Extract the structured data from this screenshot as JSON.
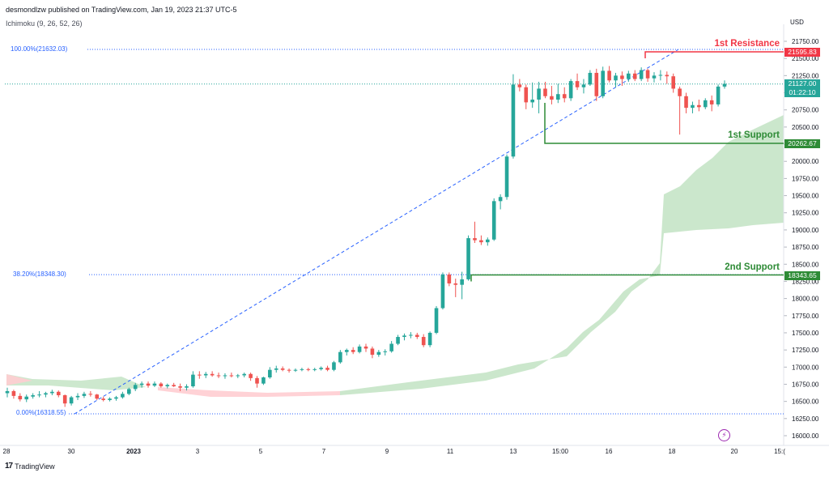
{
  "header": {
    "publisher": "desmondlzw published on TradingView.com, Jan 19, 2023 21:37 UTC-5",
    "indicator": "Ichimoku (9, 26, 52, 26)"
  },
  "footer": {
    "brand": "TradingView",
    "logo": "tv-logo-icon"
  },
  "colors": {
    "up": "#26a69a",
    "down": "#ef5350",
    "resistance": "#f23645",
    "support": "#2e8b36",
    "fib": "#2962ff",
    "cloud_bull": "#c8e6c9",
    "cloud_bear": "#ffcdd2"
  },
  "annotations": {
    "resistance_label": "1st Resistance",
    "support1_label": "1st Support",
    "support2_label": "2nd Support",
    "fib_top_label": "100.00%(21632.03)",
    "fib_mid_label": "38.20%(18348.30)",
    "fib_bottom_label": "0.00%(16318.55)"
  },
  "price_tags": {
    "resistance": "21595.83",
    "current_price": "21127.00",
    "countdown": "01:22:10",
    "support1": "20262.67",
    "support2": "18343.65"
  },
  "chart_data": {
    "type": "candlestick",
    "symbol_currency": "USD",
    "y_axis_label": "USD",
    "ylim": [
      16000,
      21900
    ],
    "y_ticks": [
      16000,
      16250,
      16500,
      16750,
      17000,
      17250,
      17500,
      17750,
      18000,
      18250,
      18500,
      18750,
      19000,
      19250,
      19500,
      19750,
      20000,
      20250,
      20500,
      20750,
      21000,
      21250,
      21500,
      21750
    ],
    "x_ticks": [
      "28",
      "30",
      "2023",
      "3",
      "5",
      "7",
      "9",
      "11",
      "13",
      "15:00",
      "16",
      "18",
      "20",
      "15:("
    ],
    "levels": {
      "resistance": 21595.83,
      "support1": 20262.67,
      "support2": 18343.65,
      "current": 21127.0,
      "fib_100": 21632.03,
      "fib_382": 18348.3,
      "fib_0": 16318.55
    },
    "candles": [
      [
        16620,
        16700,
        16560,
        16650
      ],
      [
        16650,
        16670,
        16540,
        16580
      ],
      [
        16580,
        16620,
        16500,
        16530
      ],
      [
        16530,
        16600,
        16490,
        16570
      ],
      [
        16570,
        16620,
        16540,
        16590
      ],
      [
        16590,
        16650,
        16560,
        16600
      ],
      [
        16600,
        16640,
        16560,
        16620
      ],
      [
        16620,
        16670,
        16590,
        16640
      ],
      [
        16640,
        16660,
        16560,
        16590
      ],
      [
        16590,
        16600,
        16420,
        16470
      ],
      [
        16470,
        16580,
        16440,
        16560
      ],
      [
        16560,
        16620,
        16520,
        16580
      ],
      [
        16580,
        16640,
        16550,
        16610
      ],
      [
        16610,
        16650,
        16570,
        16600
      ],
      [
        16600,
        16610,
        16520,
        16540
      ],
      [
        16540,
        16570,
        16500,
        16520
      ],
      [
        16520,
        16560,
        16500,
        16540
      ],
      [
        16540,
        16580,
        16510,
        16560
      ],
      [
        16560,
        16640,
        16540,
        16610
      ],
      [
        16610,
        16700,
        16590,
        16680
      ],
      [
        16680,
        16770,
        16650,
        16740
      ],
      [
        16740,
        16790,
        16700,
        16760
      ],
      [
        16760,
        16790,
        16700,
        16730
      ],
      [
        16730,
        16790,
        16710,
        16760
      ],
      [
        16760,
        16780,
        16700,
        16720
      ],
      [
        16720,
        16760,
        16690,
        16740
      ],
      [
        16740,
        16770,
        16710,
        16720
      ],
      [
        16720,
        16760,
        16650,
        16700
      ],
      [
        16700,
        16750,
        16660,
        16720
      ],
      [
        16720,
        16940,
        16700,
        16890
      ],
      [
        16890,
        16940,
        16830,
        16880
      ],
      [
        16880,
        16930,
        16840,
        16900
      ],
      [
        16900,
        16940,
        16860,
        16880
      ],
      [
        16880,
        16920,
        16840,
        16870
      ],
      [
        16870,
        16910,
        16830,
        16880
      ],
      [
        16880,
        16920,
        16850,
        16870
      ],
      [
        16870,
        16900,
        16840,
        16880
      ],
      [
        16880,
        16920,
        16850,
        16900
      ],
      [
        16900,
        16920,
        16800,
        16840
      ],
      [
        16840,
        16870,
        16700,
        16760
      ],
      [
        16760,
        16860,
        16740,
        16850
      ],
      [
        16850,
        17000,
        16830,
        16960
      ],
      [
        16960,
        17020,
        16920,
        16980
      ],
      [
        16980,
        17010,
        16940,
        16960
      ],
      [
        16960,
        16980,
        16920,
        16950
      ],
      [
        16950,
        16980,
        16930,
        16960
      ],
      [
        16960,
        16990,
        16940,
        16970
      ],
      [
        16970,
        16990,
        16940,
        16960
      ],
      [
        16960,
        16990,
        16940,
        16970
      ],
      [
        16970,
        17010,
        16950,
        16990
      ],
      [
        16990,
        17020,
        16940,
        16960
      ],
      [
        16960,
        17090,
        16940,
        17070
      ],
      [
        17070,
        17250,
        17050,
        17220
      ],
      [
        17220,
        17270,
        17170,
        17250
      ],
      [
        17250,
        17290,
        17190,
        17220
      ],
      [
        17220,
        17330,
        17200,
        17300
      ],
      [
        17300,
        17340,
        17220,
        17270
      ],
      [
        17270,
        17300,
        17130,
        17180
      ],
      [
        17180,
        17250,
        17150,
        17220
      ],
      [
        17220,
        17260,
        17170,
        17230
      ],
      [
        17230,
        17380,
        17210,
        17340
      ],
      [
        17340,
        17470,
        17320,
        17440
      ],
      [
        17440,
        17490,
        17390,
        17460
      ],
      [
        17460,
        17510,
        17420,
        17470
      ],
      [
        17470,
        17500,
        17410,
        17440
      ],
      [
        17440,
        17480,
        17290,
        17320
      ],
      [
        17320,
        17520,
        17290,
        17500
      ],
      [
        17500,
        17890,
        17480,
        17860
      ],
      [
        17860,
        18380,
        17840,
        18350
      ],
      [
        18350,
        18380,
        18180,
        18220
      ],
      [
        18220,
        18290,
        18020,
        18200
      ],
      [
        18200,
        18390,
        17990,
        18280
      ],
      [
        18280,
        18920,
        18260,
        18880
      ],
      [
        18880,
        19120,
        18810,
        18850
      ],
      [
        18850,
        18920,
        18780,
        18820
      ],
      [
        18820,
        18890,
        18770,
        18860
      ],
      [
        18860,
        19460,
        18840,
        19420
      ],
      [
        19420,
        19520,
        19300,
        19480
      ],
      [
        19480,
        20100,
        19440,
        20070
      ],
      [
        20070,
        21270,
        20040,
        21120
      ],
      [
        21120,
        21200,
        21020,
        21080
      ],
      [
        21080,
        21120,
        20760,
        20860
      ],
      [
        20860,
        21150,
        20780,
        20900
      ],
      [
        20900,
        21160,
        20700,
        21060
      ],
      [
        21060,
        21160,
        20920,
        20950
      ],
      [
        20950,
        21100,
        20830,
        20900
      ],
      [
        20900,
        21130,
        20850,
        20980
      ],
      [
        20980,
        21080,
        20860,
        20920
      ],
      [
        20920,
        21200,
        20880,
        21170
      ],
      [
        21170,
        21280,
        21040,
        21080
      ],
      [
        21080,
        21200,
        20990,
        21120
      ],
      [
        21120,
        21330,
        21100,
        21290
      ],
      [
        21290,
        21350,
        20880,
        20950
      ],
      [
        20950,
        21380,
        20920,
        21320
      ],
      [
        21320,
        21390,
        21150,
        21180
      ],
      [
        21180,
        21290,
        21080,
        21250
      ],
      [
        21250,
        21310,
        21100,
        21200
      ],
      [
        21200,
        21320,
        21160,
        21280
      ],
      [
        21280,
        21330,
        21170,
        21200
      ],
      [
        21200,
        21370,
        21170,
        21330
      ],
      [
        21330,
        21350,
        21160,
        21210
      ],
      [
        21210,
        21300,
        21150,
        21250
      ],
      [
        21250,
        21330,
        21180,
        21260
      ],
      [
        21260,
        21310,
        21130,
        21240
      ],
      [
        21240,
        21280,
        21000,
        21060
      ],
      [
        21060,
        21090,
        20390,
        20950
      ],
      [
        20950,
        21000,
        20700,
        20780
      ],
      [
        20780,
        20870,
        20700,
        20820
      ],
      [
        20820,
        20900,
        20730,
        20790
      ],
      [
        20790,
        20920,
        20760,
        20890
      ],
      [
        20890,
        20960,
        20730,
        20830
      ],
      [
        20830,
        21120,
        20800,
        21090
      ],
      [
        21090,
        21180,
        21060,
        21130
      ]
    ]
  }
}
